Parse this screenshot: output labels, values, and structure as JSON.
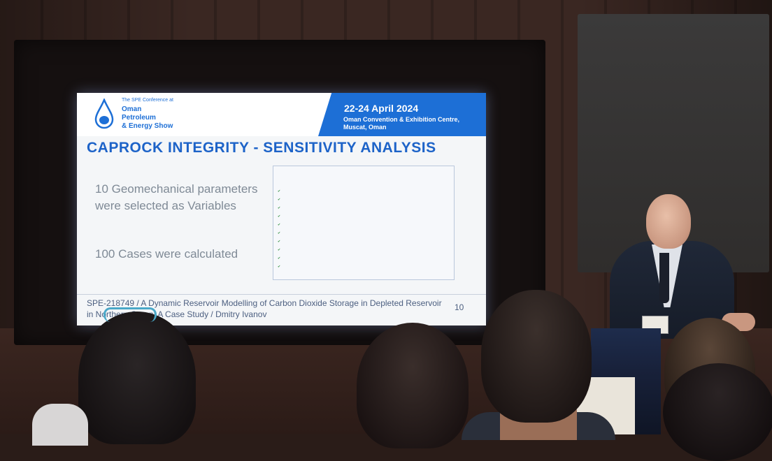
{
  "slide": {
    "conference_small": "The SPE Conference at",
    "conference_name": "Oman\nPetroleum\n& Energy Show",
    "date": "22-24 April 2024",
    "venue": "Oman Convention & Exhibition Centre, Muscat, Oman",
    "title": "CAPROCK INTEGRITY - SENSITIVITY ANALYSIS",
    "bullet_1": "10 Geomechanical parameters were selected as Variables",
    "bullet_2": "100 Cases were calculated",
    "footer": "SPE-218749 / A Dynamic Reservoir Modelling of Carbon Dioxide Storage in Depleted Reservoir in Northern Oman: A Case Study / Dmitry Ivanov",
    "page_number": "10"
  },
  "colors": {
    "accent_blue": "#1d6fd6",
    "title_blue": "#1d63c8"
  }
}
